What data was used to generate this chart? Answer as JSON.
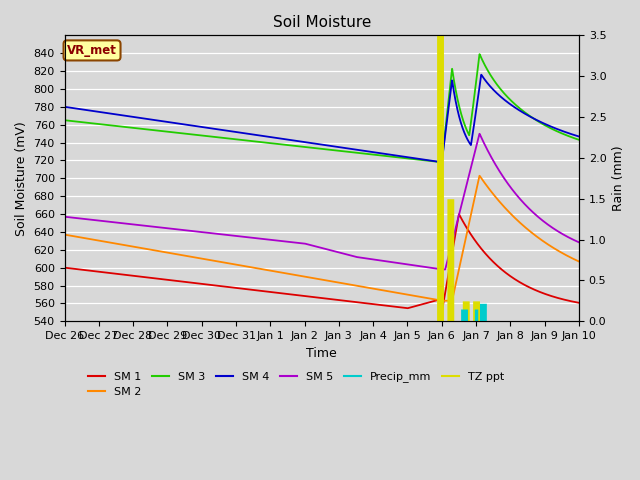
{
  "title": "Soil Moisture",
  "xlabel": "Time",
  "ylabel_left": "Soil Moisture (mV)",
  "ylabel_right": "Rain (mm)",
  "ylim_left": [
    540,
    860
  ],
  "ylim_right": [
    0.0,
    3.5
  ],
  "yticks_left": [
    540,
    560,
    580,
    600,
    620,
    640,
    660,
    680,
    700,
    720,
    740,
    760,
    780,
    800,
    820,
    840
  ],
  "yticks_right": [
    0.0,
    0.5,
    1.0,
    1.5,
    2.0,
    2.5,
    3.0,
    3.5
  ],
  "plot_bg_color": "#d8d8d8",
  "fig_bg_color": "#d8d8d8",
  "grid_color": "white",
  "colors": {
    "sm1": "#dd0000",
    "sm2": "#ff8800",
    "sm3": "#22cc00",
    "sm4": "#0000cc",
    "sm5": "#aa00cc",
    "precip": "#00cccc",
    "tz": "#dddd00"
  },
  "xticklabels": [
    "Dec 26",
    "Dec 27",
    "Dec 28",
    "Dec 29",
    "Dec 30",
    "Dec 31",
    "Jan 1",
    "Jan 2",
    "Jan 3",
    "Jan 4",
    "Jan 5",
    "Jan 6",
    "Jan 7",
    "Jan 8",
    "Jan 9",
    "Jan 10"
  ],
  "vr_met_box_color": "#ffffa0",
  "vr_met_text_color": "#8b0000",
  "vr_met_edge_color": "#8b4500"
}
